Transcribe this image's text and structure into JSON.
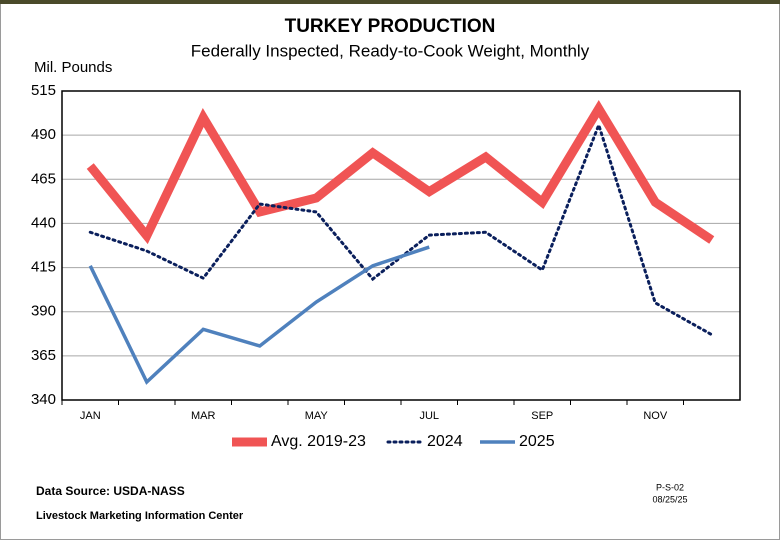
{
  "chart_data": {
    "type": "line",
    "title": "TURKEY PRODUCTION",
    "subtitle": "Federally Inspected, Ready-to-Cook Weight, Monthly",
    "y_label": "Mil. Pounds",
    "categories": [
      "JAN",
      null,
      "MAR",
      null,
      "MAY",
      null,
      "JUL",
      null,
      "SEP",
      null,
      "NOV",
      null
    ],
    "series": [
      {
        "name": "Avg. 2019-23",
        "color": "#f05454",
        "style": "solid",
        "width": 9,
        "values": [
          472.5,
          433,
          500,
          446.5,
          454.4,
          480,
          458,
          477.6,
          452,
          505,
          452,
          430.6
        ]
      },
      {
        "name": "2024",
        "color": "#0a1f5c",
        "style": "dotted",
        "width": 3,
        "values": [
          435,
          424.4,
          409,
          451,
          446.5,
          408.5,
          433.4,
          435,
          413.6,
          495.7,
          395,
          377
        ]
      },
      {
        "name": "2025",
        "color": "#4f81bd",
        "style": "solid",
        "width": 3.5,
        "values": [
          416,
          350.2,
          380,
          370.6,
          395.5,
          416,
          426.6,
          null,
          null,
          null,
          null,
          null
        ]
      }
    ],
    "ylim": [
      340,
      515
    ],
    "yticks": [
      340,
      365,
      390,
      415,
      440,
      465,
      490,
      515
    ],
    "grid": true,
    "legend": "bottom",
    "source": "Data Source:  USDA-NASS",
    "organization": "Livestock Marketing Information Center",
    "code": "P-S-02",
    "date": "08/25/25"
  }
}
